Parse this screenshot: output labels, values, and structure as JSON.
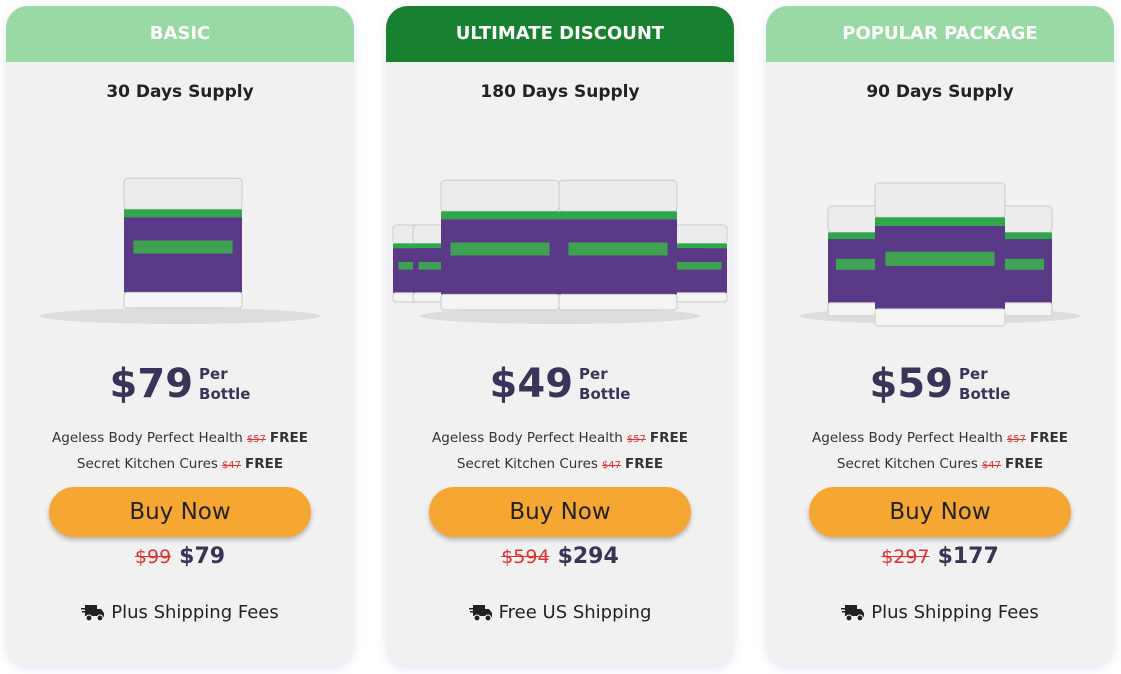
{
  "cards": [
    {
      "header": "BASIC",
      "header_color": "#98d9a4",
      "supply": "30 Days Supply",
      "price": "$79",
      "per": "Per",
      "unit": "Bottle",
      "bonuses": [
        {
          "name": "Ageless Body Perfect Health",
          "old": "$57",
          "tag": "FREE"
        },
        {
          "name": "Secret Kitchen Cures",
          "old": "$47",
          "tag": "FREE"
        }
      ],
      "button": "Buy Now",
      "old_total": "$99",
      "total": "$79",
      "shipping": "Plus Shipping Fees"
    },
    {
      "header": "ULTIMATE DISCOUNT",
      "header_color": "#17812f",
      "supply": "180 Days Supply",
      "price": "$49",
      "per": "Per",
      "unit": "Bottle",
      "bonuses": [
        {
          "name": "Ageless Body Perfect Health",
          "old": "$57",
          "tag": "FREE"
        },
        {
          "name": "Secret Kitchen Cures",
          "old": "$47",
          "tag": "FREE"
        }
      ],
      "button": "Buy Now",
      "old_total": "$594",
      "total": "$294",
      "shipping": "Free US Shipping"
    },
    {
      "header": "POPULAR PACKAGE",
      "header_color": "#98d9a4",
      "supply": "90 Days Supply",
      "price": "$59",
      "per": "Per",
      "unit": "Bottle",
      "bonuses": [
        {
          "name": "Ageless Body Perfect Health",
          "old": "$57",
          "tag": "FREE"
        },
        {
          "name": "Secret Kitchen Cures",
          "old": "$47",
          "tag": "FREE"
        }
      ],
      "button": "Buy Now",
      "old_total": "$297",
      "total": "$177",
      "shipping": "Plus Shipping Fees"
    }
  ]
}
